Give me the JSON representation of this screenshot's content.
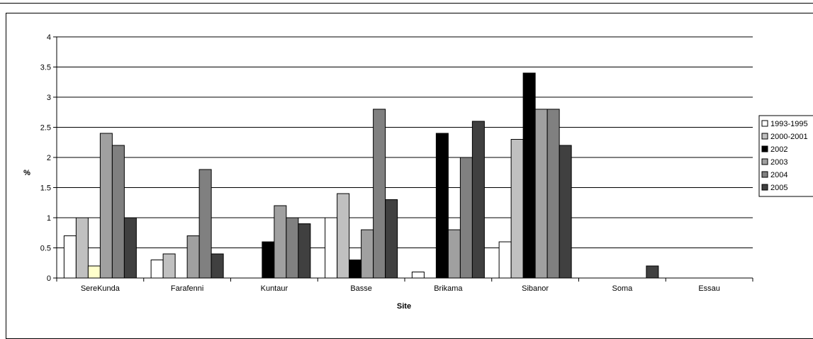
{
  "chart_data": {
    "type": "bar",
    "title": "",
    "xlabel": "Site",
    "ylabel": "%",
    "ylim": [
      0,
      4
    ],
    "yticks": [
      "0",
      "0.5",
      "1",
      "1.5",
      "2",
      "2.5",
      "3",
      "3.5",
      "4"
    ],
    "ytick_values": [
      0,
      0.5,
      1,
      1.5,
      2,
      2.5,
      3,
      3.5,
      4
    ],
    "grid": true,
    "legend_position": "right",
    "categories": [
      "SereKunda",
      "Farafenni",
      "Kuntaur",
      "Basse",
      "Brikama",
      "Sibanor",
      "Soma",
      "Essau"
    ],
    "series": [
      {
        "name": "1993-1995",
        "color": "#ffffff",
        "values": [
          0.7,
          0.3,
          0,
          1.0,
          0.1,
          0.6,
          0,
          0
        ]
      },
      {
        "name": "2000-2001",
        "color": "#c0c0c0",
        "values": [
          1.0,
          0.4,
          0,
          1.4,
          0,
          2.3,
          0,
          0
        ]
      },
      {
        "name": "2002",
        "color": "#000000",
        "values": [
          0.2,
          0,
          0.6,
          0.3,
          2.4,
          3.4,
          0,
          0
        ],
        "point_colors": [
          "#ffffcc",
          null,
          null,
          null,
          null,
          null,
          null,
          null
        ]
      },
      {
        "name": "2003",
        "color": "#a0a0a0",
        "values": [
          2.4,
          0.7,
          1.2,
          0.8,
          0.8,
          2.8,
          0,
          0
        ]
      },
      {
        "name": "2004",
        "color": "#808080",
        "values": [
          2.2,
          1.8,
          1.0,
          2.8,
          2.0,
          2.8,
          0,
          0
        ]
      },
      {
        "name": "2005",
        "color": "#404040",
        "values": [
          1.0,
          0.4,
          0.9,
          1.3,
          2.6,
          2.2,
          0.2,
          0
        ]
      }
    ]
  },
  "legend": {
    "items": [
      "1993-1995",
      "2000-2001",
      "2002",
      "2003",
      "2004",
      "2005"
    ]
  }
}
